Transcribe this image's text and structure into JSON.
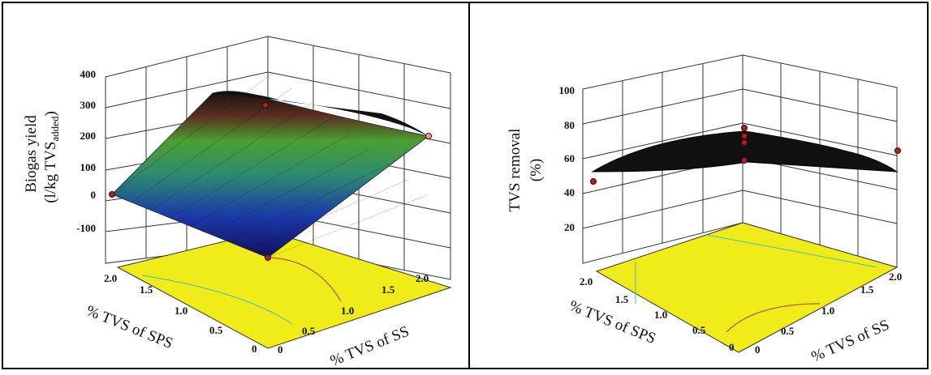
{
  "chart_data": [
    {
      "type": "surface3d",
      "zlabel_line1": "Biogas yield",
      "zlabel_line2": "(l/kg TVS",
      "zlabel_sub": "added",
      "zlabel_close": ")",
      "xlabel": "% TVS of SPS",
      "ylabel": "% TVS of SS",
      "x_ticks": [
        "2.0",
        "1.5",
        "1.0",
        "0.5",
        "0"
      ],
      "y_ticks": [
        "0",
        "0.5",
        "1.0",
        "1.5",
        "2.0"
      ],
      "z_ticks": [
        "400",
        "300",
        "200",
        "100",
        "0",
        "-100"
      ],
      "zlim": [
        -100,
        400
      ],
      "xlim": [
        0,
        2
      ],
      "ylim": [
        0,
        2
      ],
      "surface_profile": {
        "x": [
          0,
          0.25,
          0.5,
          0.75,
          1.0,
          1.25,
          1.5,
          1.75,
          2.0
        ],
        "z": [
          0,
          110,
          195,
          255,
          290,
          300,
          290,
          255,
          195
        ]
      },
      "design_points_z": [
        0,
        280,
        210
      ],
      "colors": {
        "floor": "#f0ec1a",
        "high": "#ff3020",
        "mid": "#30c030",
        "low": "#1818a0",
        "contour": "#b06030"
      }
    },
    {
      "type": "surface3d",
      "zlabel_line1": "TVS removal",
      "zlabel_line2": "(%)",
      "xlabel": "% TVS of SPS",
      "ylabel": "% TVS of SS",
      "x_ticks": [
        "2.0",
        "1.5",
        "1.0",
        "0.5",
        "0"
      ],
      "y_ticks": [
        "0",
        "0.5",
        "1.0",
        "1.5",
        "2.0"
      ],
      "z_ticks": [
        "100",
        "80",
        "60",
        "40",
        "20"
      ],
      "zlim": [
        0,
        100
      ],
      "xlim": [
        0,
        2
      ],
      "ylim": [
        0,
        2
      ],
      "surface_profile": {
        "x": [
          0,
          0.5,
          1.0,
          1.5,
          2.0
        ],
        "z": [
          50,
          60,
          65,
          60,
          52
        ]
      },
      "design_points_z": [
        48,
        75,
        70,
        65,
        58,
        62
      ],
      "colors": {
        "floor": "#f0ec1a",
        "surface": "#111111",
        "contour": "#b06030"
      }
    }
  ]
}
